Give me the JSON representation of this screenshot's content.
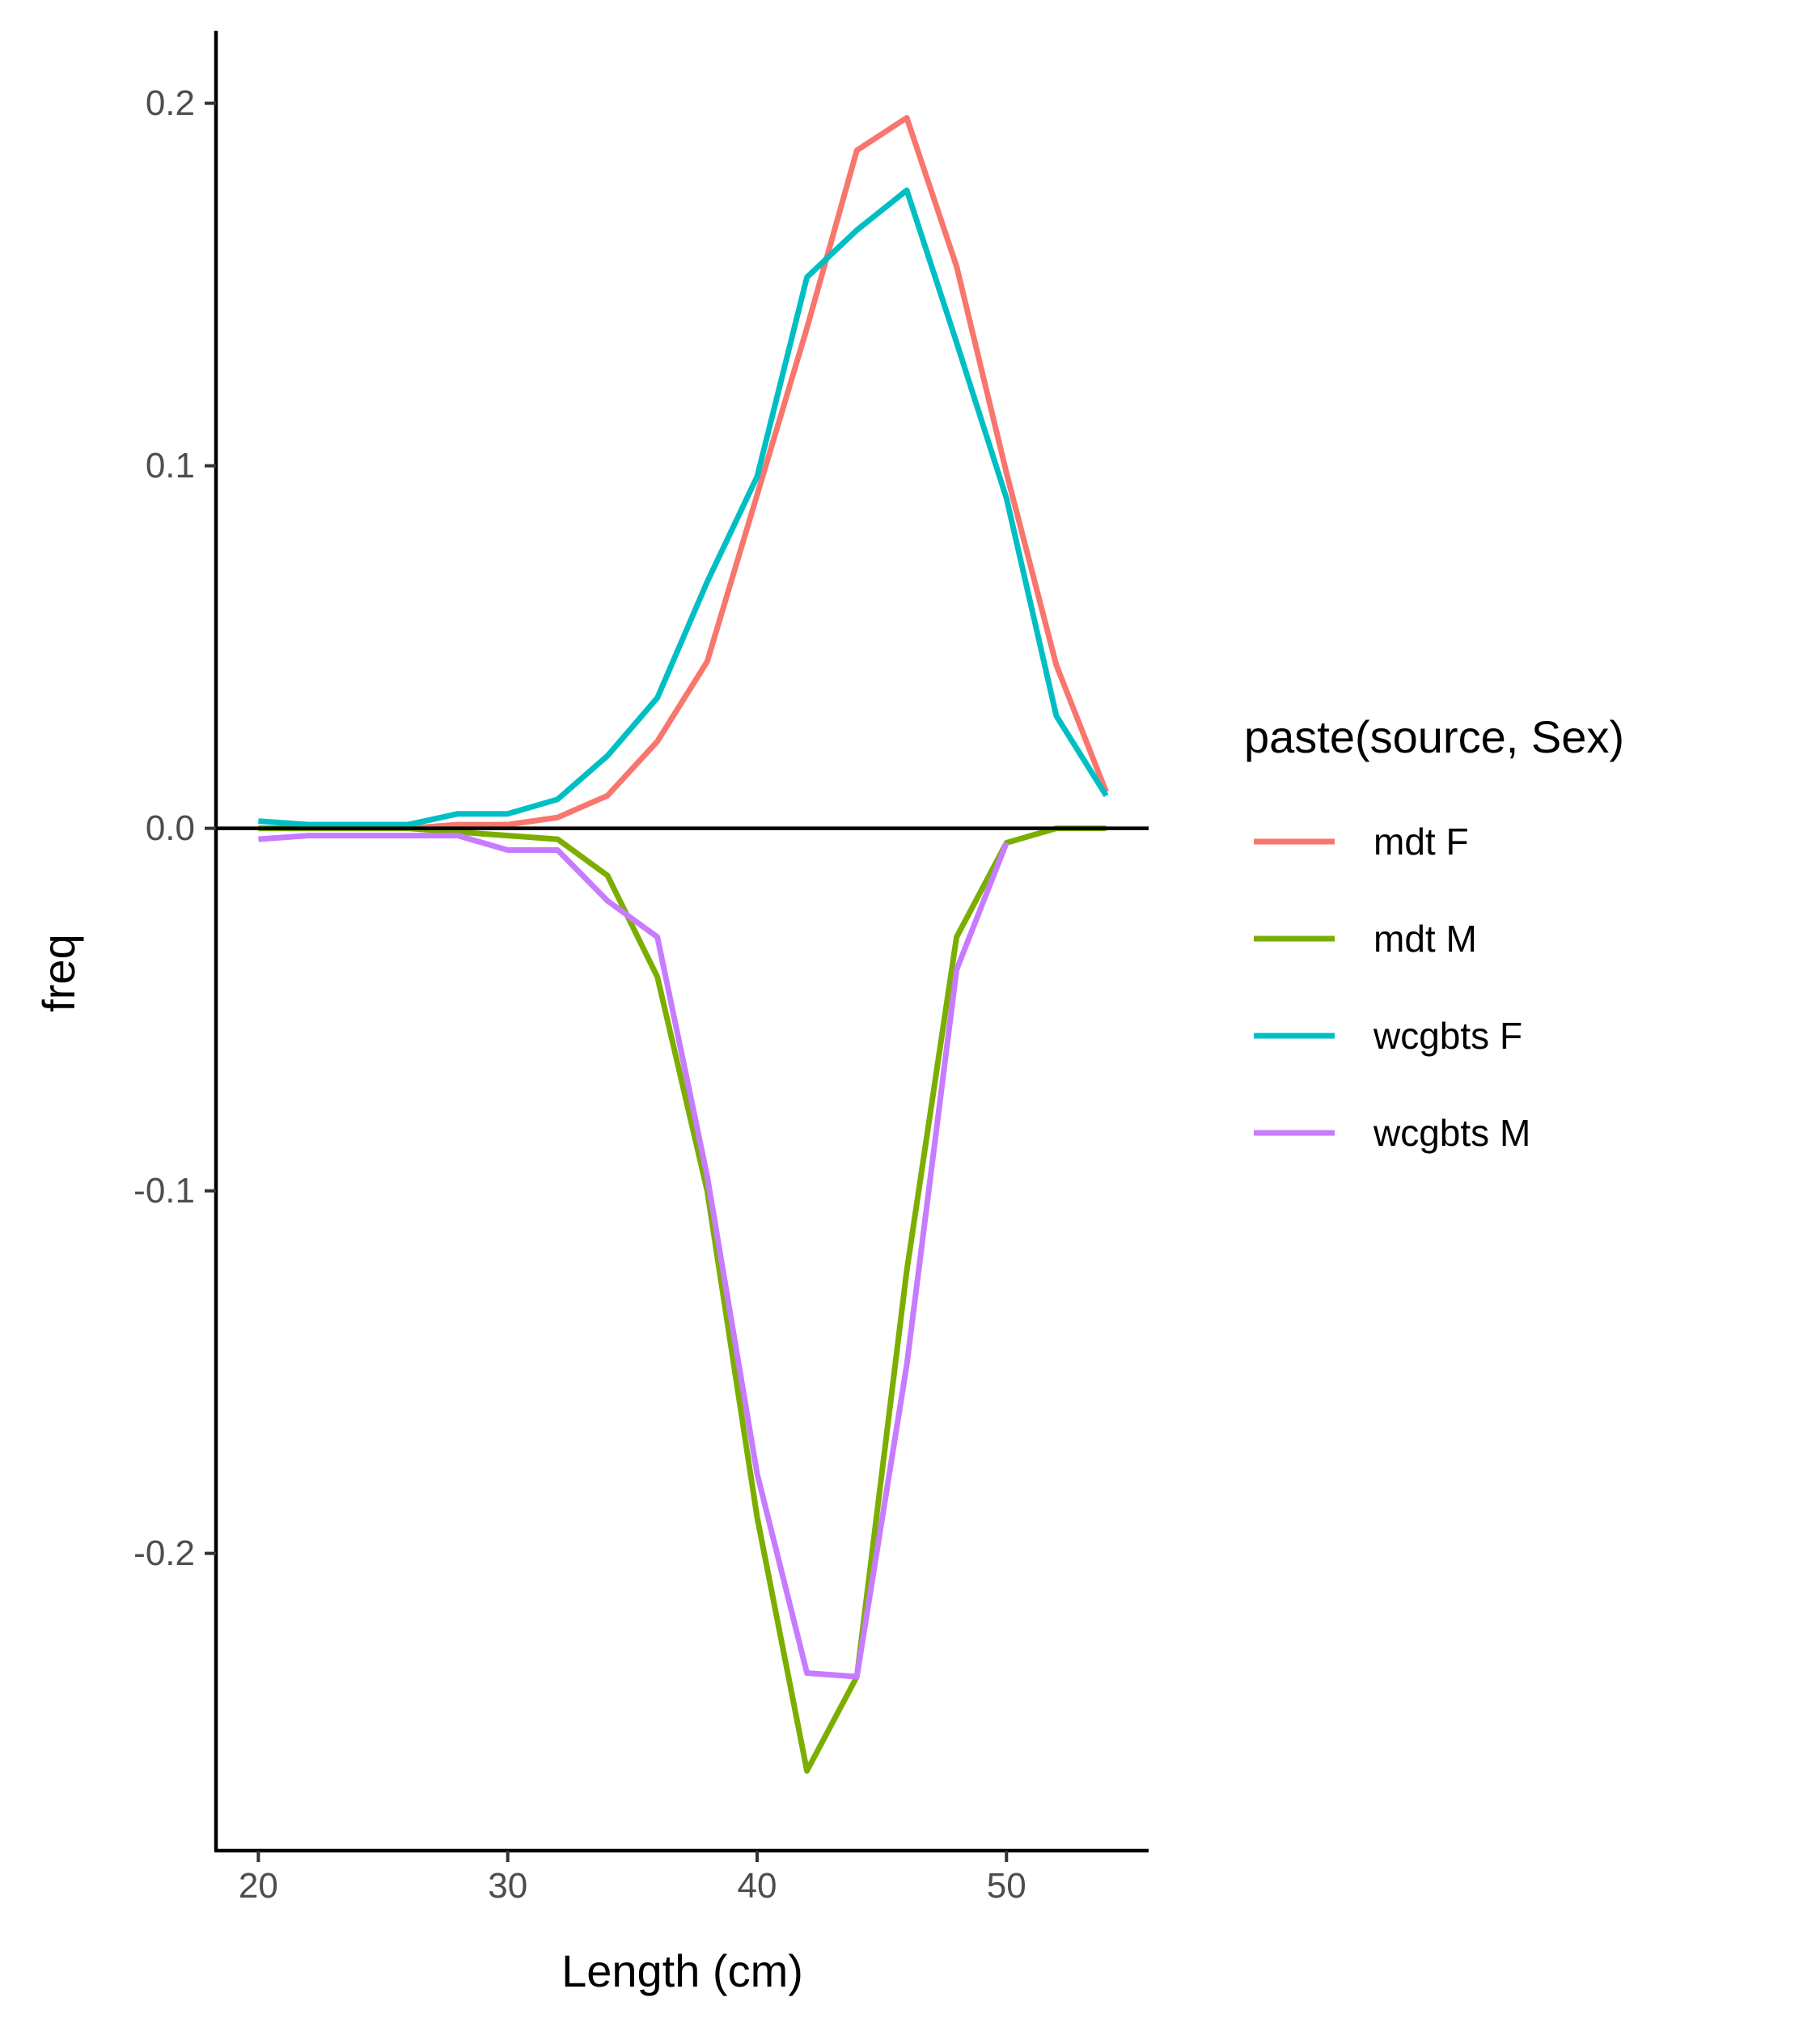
{
  "chart_data": {
    "type": "line",
    "title": "",
    "xlabel": "Length (cm)",
    "ylabel": "freq",
    "xlim": [
      18.3,
      55.7
    ],
    "ylim": [
      -0.282,
      0.22
    ],
    "x_ticks": [
      20,
      30,
      40,
      50
    ],
    "x_tick_labels": [
      "20",
      "30",
      "40",
      "50"
    ],
    "y_ticks": [
      -0.2,
      -0.1,
      0.0,
      0.1,
      0.2
    ],
    "y_tick_labels": [
      "-0.2",
      "-0.1",
      "0.0",
      "0.1",
      "0.2"
    ],
    "grid": false,
    "zero_line": true,
    "legend": {
      "title": "paste(source, Sex)",
      "position": "right"
    },
    "series": [
      {
        "name": "mdt F",
        "color": "#F8766D",
        "x": [
          20,
          22,
          24,
          26,
          28,
          30,
          32,
          34,
          36,
          38,
          40,
          42,
          44,
          46,
          48,
          50,
          52,
          54
        ],
        "y": [
          0.0,
          0.0,
          0.0,
          0.0,
          0.001,
          0.001,
          0.003,
          0.009,
          0.024,
          0.046,
          0.092,
          0.138,
          0.187,
          0.196,
          0.155,
          0.098,
          0.045,
          0.01
        ]
      },
      {
        "name": "mdt M",
        "color": "#7CAE00",
        "x": [
          20,
          22,
          24,
          26,
          28,
          30,
          32,
          34,
          36,
          38,
          40,
          42,
          44,
          46,
          48,
          50,
          52,
          54
        ],
        "y": [
          0.0,
          0.0,
          0.0,
          0.0,
          -0.001,
          -0.002,
          -0.003,
          -0.013,
          -0.041,
          -0.1,
          -0.19,
          -0.26,
          -0.234,
          -0.122,
          -0.03,
          -0.004,
          0.0,
          0.0
        ]
      },
      {
        "name": "wcgbts F",
        "color": "#00BFC4",
        "x": [
          20,
          22,
          24,
          26,
          28,
          30,
          32,
          34,
          36,
          38,
          40,
          42,
          44,
          46,
          48,
          50,
          52,
          54
        ],
        "y": [
          0.002,
          0.001,
          0.001,
          0.001,
          0.004,
          0.004,
          0.008,
          0.02,
          0.036,
          0.068,
          0.097,
          0.152,
          0.165,
          0.176,
          0.134,
          0.091,
          0.031,
          0.009
        ]
      },
      {
        "name": "wcgbts M",
        "color": "#C77CFF",
        "x": [
          20,
          22,
          24,
          26,
          28,
          30,
          32,
          34,
          36,
          38,
          40,
          42,
          44,
          46,
          48,
          50
        ],
        "y": [
          -0.003,
          -0.002,
          -0.002,
          -0.002,
          -0.002,
          -0.006,
          -0.006,
          -0.02,
          -0.03,
          -0.096,
          -0.178,
          -0.233,
          -0.234,
          -0.148,
          -0.039,
          -0.004
        ]
      }
    ]
  }
}
